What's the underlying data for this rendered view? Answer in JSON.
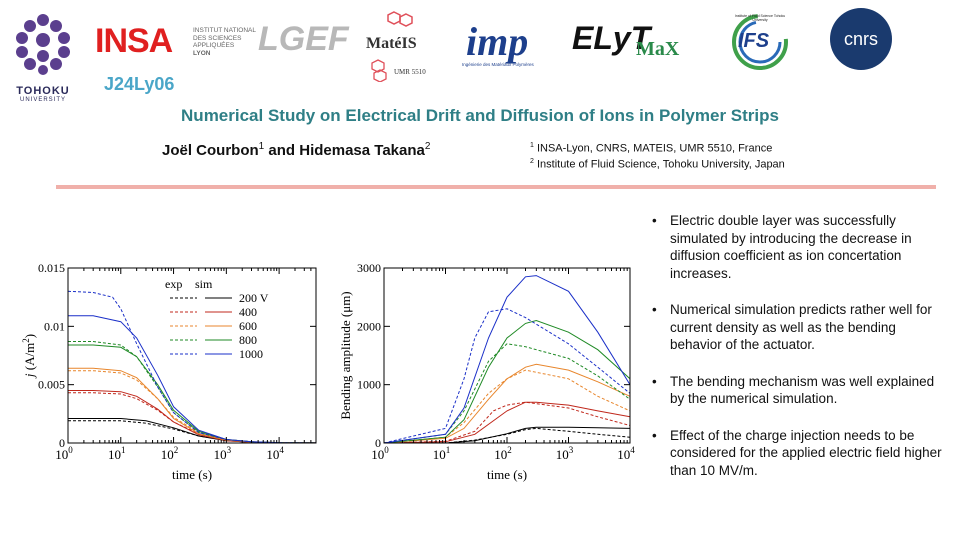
{
  "logos": {
    "tohoku": {
      "name": "TOHOKU",
      "sub": "UNIVERSITY"
    },
    "insa": {
      "name": "INSA",
      "sub1": "INSTITUT NATIONAL",
      "sub2": "DES SCIENCES",
      "sub3": "APPLIQUÉES",
      "sub4": "LYON"
    },
    "lgef": "LGEF",
    "mateis": {
      "name": "MatéIS",
      "sub": "UMR 5510"
    },
    "imp": {
      "name": "imp",
      "sub": "Ingénierie des Matériaux Polymères"
    },
    "elyt": {
      "name": "ELyT",
      "sub": "MaX"
    },
    "ifs": {
      "name": "IFS",
      "sub": "Institute of Fluid Science Tohoku University"
    },
    "cnrs": "cnrs"
  },
  "code": "J24Ly06",
  "title": "Numerical Study on Electrical Drift and Diffusion of Ions in Polymer Strips",
  "authors": {
    "a1": "Joël Courbon",
    "a1_sup": "1",
    "and": " and ",
    "a2": "Hidemasa Takana",
    "a2_sup": "2"
  },
  "affiliations": [
    {
      "sup": "1",
      "text": " INSA-Lyon, CNRS, MATEIS, UMR 5510, France"
    },
    {
      "sup": "2",
      "text": " Institute of Fluid Science, Tohoku University, Japan"
    }
  ],
  "bullets": [
    "Electric double layer was successfully simulated by introducing the decrease in diffusion coefficient as ion concertation increases.",
    "Numerical simulation predicts rather well for current density as well as the bending behavior of the actuator.",
    "The bending mechanism was well explained by the numerical simulation.",
    "Effect of the charge injection needs to be considered for the applied electric field higher than 10 MV/m."
  ],
  "chart_data": [
    {
      "type": "line",
      "xlabel": "time (s)",
      "ylabel_italic": "j",
      "ylabel_rest": " (A/m",
      "ylabel_sup": "2",
      "ylabel_end": ")",
      "x_scale": "log",
      "xlim": [
        1,
        50000
      ],
      "ylim": [
        0,
        0.015
      ],
      "x_ticks": [
        {
          "base": "10",
          "exp": "0",
          "value": 1
        },
        {
          "base": "10",
          "exp": "1",
          "value": 10
        },
        {
          "base": "10",
          "exp": "2",
          "value": 100
        },
        {
          "base": "10",
          "exp": "3",
          "value": 1000
        },
        {
          "base": "10",
          "exp": "4",
          "value": 10000
        }
      ],
      "y_ticks": [
        {
          "label": "0",
          "value": 0
        },
        {
          "label": "0.005",
          "value": 0.005
        },
        {
          "label": "0.01",
          "value": 0.01
        },
        {
          "label": "0.015",
          "value": 0.015
        }
      ],
      "legend": {
        "header_exp": "exp",
        "header_sim": "sim",
        "placement": "top-right",
        "labels": [
          "200 V",
          "400",
          "600",
          "800",
          "1000"
        ]
      },
      "series": [
        {
          "name": "200 V exp",
          "color": "#000000",
          "dashed": true,
          "x": [
            1,
            3,
            10,
            30,
            100,
            300,
            1000,
            3000,
            10000,
            50000
          ],
          "y": [
            0.0019,
            0.0019,
            0.0019,
            0.0017,
            0.0012,
            0.0006,
            0.00025,
            0.0001,
            3e-05,
            1e-05
          ]
        },
        {
          "name": "200 V sim",
          "color": "#000000",
          "dashed": false,
          "x": [
            1,
            3,
            10,
            30,
            100,
            300,
            1000,
            3000,
            10000,
            50000
          ],
          "y": [
            0.0021,
            0.0021,
            0.0021,
            0.0019,
            0.0013,
            0.0006,
            0.0002,
            6e-05,
            2e-05,
            1e-05
          ]
        },
        {
          "name": "400 exp",
          "color": "#c0281c",
          "dashed": true,
          "x": [
            1,
            3,
            10,
            20,
            50,
            100,
            300,
            1000,
            3000,
            10000,
            50000
          ],
          "y": [
            0.0043,
            0.0043,
            0.0042,
            0.0038,
            0.0028,
            0.0018,
            0.0008,
            0.0003,
            0.0001,
            3e-05,
            1e-05
          ]
        },
        {
          "name": "400 sim",
          "color": "#c0281c",
          "dashed": false,
          "x": [
            1,
            3,
            10,
            20,
            50,
            100,
            300,
            1000,
            3000,
            10000,
            50000
          ],
          "y": [
            0.0045,
            0.0045,
            0.0044,
            0.004,
            0.0029,
            0.0018,
            0.0007,
            0.0002,
            7e-05,
            2e-05,
            1e-05
          ]
        },
        {
          "name": "600 exp",
          "color": "#e8862c",
          "dashed": true,
          "x": [
            1,
            3,
            10,
            20,
            50,
            100,
            300,
            1000,
            3000,
            10000,
            50000
          ],
          "y": [
            0.0062,
            0.0062,
            0.006,
            0.0054,
            0.0038,
            0.0022,
            0.0009,
            0.0003,
            0.0001,
            3e-05,
            1e-05
          ]
        },
        {
          "name": "600 sim",
          "color": "#e8862c",
          "dashed": false,
          "x": [
            1,
            3,
            10,
            20,
            50,
            100,
            300,
            1000,
            3000,
            10000,
            50000
          ],
          "y": [
            0.0064,
            0.0064,
            0.0062,
            0.0056,
            0.0038,
            0.0021,
            0.0008,
            0.00025,
            8e-05,
            2e-05,
            1e-05
          ]
        },
        {
          "name": "800 exp",
          "color": "#1f8a25",
          "dashed": true,
          "x": [
            1,
            3,
            10,
            20,
            50,
            100,
            300,
            1000,
            3000,
            10000,
            50000
          ],
          "y": [
            0.0087,
            0.0087,
            0.0084,
            0.0074,
            0.0048,
            0.0026,
            0.0009,
            0.0003,
            0.0001,
            3e-05,
            1e-05
          ]
        },
        {
          "name": "800 sim",
          "color": "#1f8a25",
          "dashed": false,
          "x": [
            1,
            3,
            10,
            20,
            50,
            100,
            300,
            1000,
            3000,
            10000,
            50000
          ],
          "y": [
            0.0084,
            0.0084,
            0.0082,
            0.0074,
            0.005,
            0.0028,
            0.001,
            0.0003,
            0.0001,
            3e-05,
            1e-05
          ]
        },
        {
          "name": "1000 exp",
          "color": "#1a2fc8",
          "dashed": true,
          "x": [
            1,
            3,
            7,
            10,
            20,
            50,
            100,
            300,
            1000,
            3000,
            10000,
            50000
          ],
          "y": [
            0.013,
            0.0129,
            0.0125,
            0.0115,
            0.0085,
            0.0048,
            0.0026,
            0.0009,
            0.0003,
            0.0001,
            3e-05,
            1e-05
          ]
        },
        {
          "name": "1000 sim",
          "color": "#1a2fc8",
          "dashed": false,
          "x": [
            1,
            3,
            10,
            20,
            50,
            100,
            300,
            1000,
            3000,
            10000,
            50000
          ],
          "y": [
            0.0109,
            0.0109,
            0.0104,
            0.009,
            0.0058,
            0.0031,
            0.0011,
            0.0003,
            0.0001,
            3e-05,
            1e-05
          ]
        }
      ]
    },
    {
      "type": "line",
      "xlabel": "time (s)",
      "ylabel": "Bending amplitude (μm)",
      "x_scale": "log",
      "xlim": [
        1,
        10000
      ],
      "ylim": [
        0,
        3000
      ],
      "x_ticks": [
        {
          "base": "10",
          "exp": "0",
          "value": 1
        },
        {
          "base": "10",
          "exp": "1",
          "value": 10
        },
        {
          "base": "10",
          "exp": "2",
          "value": 100
        },
        {
          "base": "10",
          "exp": "3",
          "value": 1000
        },
        {
          "base": "10",
          "exp": "4",
          "value": 10000
        }
      ],
      "y_ticks": [
        {
          "label": "0",
          "value": 0
        },
        {
          "label": "1000",
          "value": 1000
        },
        {
          "label": "2000",
          "value": 2000
        },
        {
          "label": "3000",
          "value": 3000
        }
      ],
      "series": [
        {
          "name": "200 V exp",
          "color": "#000000",
          "dashed": true,
          "x": [
            1,
            10,
            30,
            100,
            200,
            300,
            1000,
            3000,
            10000
          ],
          "y": [
            0,
            0,
            50,
            150,
            230,
            250,
            200,
            150,
            100
          ]
        },
        {
          "name": "200 V sim",
          "color": "#000000",
          "dashed": false,
          "x": [
            1,
            10,
            30,
            100,
            200,
            300,
            1000,
            3000,
            10000
          ],
          "y": [
            0,
            0,
            40,
            160,
            250,
            270,
            270,
            260,
            250
          ]
        },
        {
          "name": "400 exp",
          "color": "#c0281c",
          "dashed": true,
          "x": [
            1,
            10,
            30,
            60,
            100,
            200,
            1000,
            3000,
            10000
          ],
          "y": [
            0,
            30,
            200,
            550,
            650,
            700,
            600,
            450,
            300
          ]
        },
        {
          "name": "400 sim",
          "color": "#c0281c",
          "dashed": false,
          "x": [
            1,
            10,
            30,
            100,
            200,
            300,
            1000,
            3000,
            10000
          ],
          "y": [
            0,
            20,
            150,
            550,
            700,
            700,
            650,
            550,
            450
          ]
        },
        {
          "name": "600 exp",
          "color": "#e8862c",
          "dashed": true,
          "x": [
            1,
            10,
            20,
            50,
            100,
            200,
            1000,
            3000,
            10000
          ],
          "y": [
            0,
            100,
            350,
            850,
            1100,
            1250,
            1100,
            800,
            550
          ]
        },
        {
          "name": "600 sim",
          "color": "#e8862c",
          "dashed": false,
          "x": [
            1,
            10,
            20,
            50,
            100,
            200,
            300,
            1000,
            3000,
            10000
          ],
          "y": [
            0,
            80,
            250,
            750,
            1100,
            1300,
            1350,
            1250,
            1050,
            800
          ]
        },
        {
          "name": "800 exp",
          "color": "#1f8a25",
          "dashed": true,
          "x": [
            1,
            10,
            20,
            50,
            100,
            200,
            300,
            1000,
            3000,
            10000
          ],
          "y": [
            0,
            150,
            550,
            1400,
            1700,
            1650,
            1600,
            1450,
            1150,
            750
          ]
        },
        {
          "name": "800 sim",
          "color": "#1f8a25",
          "dashed": false,
          "x": [
            1,
            10,
            20,
            50,
            100,
            200,
            300,
            1000,
            3000,
            10000
          ],
          "y": [
            0,
            100,
            400,
            1300,
            1800,
            2050,
            2100,
            1900,
            1600,
            1100
          ]
        },
        {
          "name": "1000 exp",
          "color": "#1a2fc8",
          "dashed": true,
          "x": [
            1,
            10,
            20,
            30,
            50,
            100,
            200,
            1000,
            3000,
            10000
          ],
          "y": [
            0,
            250,
            1100,
            1800,
            2250,
            2300,
            2150,
            1700,
            1300,
            850
          ]
        },
        {
          "name": "1000 sim",
          "color": "#1a2fc8",
          "dashed": false,
          "x": [
            1,
            10,
            20,
            50,
            100,
            200,
            300,
            1000,
            3000,
            10000
          ],
          "y": [
            0,
            150,
            600,
            1800,
            2500,
            2850,
            2870,
            2600,
            1900,
            1000
          ]
        }
      ]
    }
  ]
}
